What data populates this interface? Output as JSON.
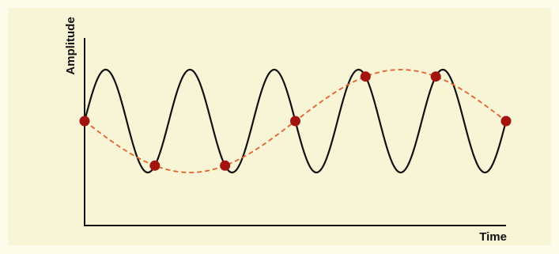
{
  "axes": {
    "y_label": "Amplitude",
    "x_label": "Time"
  }
}
